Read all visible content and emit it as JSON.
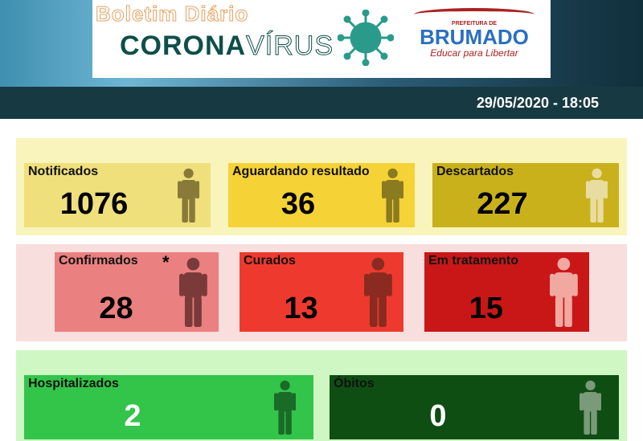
{
  "header": {
    "title_line1": "Boletim Diário",
    "title_corona": "CORONA",
    "title_virus": "VÍRUS",
    "logo_top": "PREFEITURA DE",
    "logo_name": "BRUMADO",
    "logo_slogan": "Educar para Libertar",
    "datetime": "29/05/2020  - 18:05"
  },
  "stats": [
    {
      "label": "Notificados",
      "value": "1076",
      "color": "#efe07c"
    },
    {
      "label": "Aguardando resultado",
      "value": "36",
      "color": "#f5d236"
    },
    {
      "label": "Descartados",
      "value": "227",
      "color": "#c9b11c"
    },
    {
      "label": "Confirmados",
      "value": "28",
      "color": "#ea8080",
      "note": "*"
    },
    {
      "label": "Curados",
      "value": "13",
      "color": "#ee3a2e"
    },
    {
      "label": "Em tratamento",
      "value": "15",
      "color": "#c91717"
    },
    {
      "label": "Hospitalizados",
      "value": "2",
      "color": "#32c54a"
    },
    {
      "label": "Óbitos",
      "value": "0",
      "color": "#0e4e13"
    }
  ],
  "icons": {
    "person": "person-icon",
    "virus": "virus-icon"
  }
}
